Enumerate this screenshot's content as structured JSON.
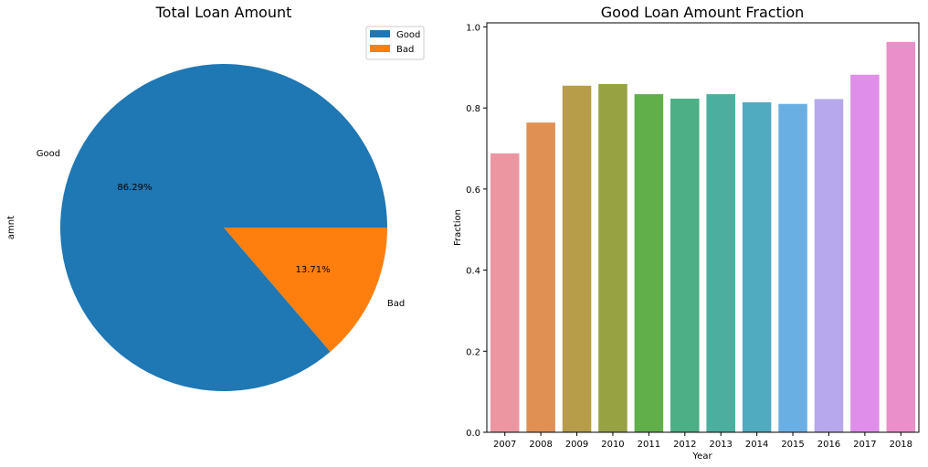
{
  "chart_data": [
    {
      "type": "pie",
      "title": "Total Loan Amount",
      "ylabel": "amnt",
      "labels": [
        "Good",
        "Bad"
      ],
      "values": [
        86.29,
        13.71
      ],
      "pct_labels": [
        "86.29%",
        "13.71%"
      ],
      "colors": [
        "#1f77b4",
        "#ff7f0e"
      ],
      "legend": {
        "position": "top-right",
        "entries": [
          "Good",
          "Bad"
        ]
      }
    },
    {
      "type": "bar",
      "title": "Good Loan Amount Fraction",
      "xlabel": "Year",
      "ylabel": "Fraction",
      "categories": [
        "2007",
        "2008",
        "2009",
        "2010",
        "2011",
        "2012",
        "2013",
        "2014",
        "2015",
        "2016",
        "2017",
        "2018"
      ],
      "values": [
        0.688,
        0.764,
        0.855,
        0.859,
        0.834,
        0.823,
        0.834,
        0.814,
        0.81,
        0.822,
        0.882,
        0.963
      ],
      "colors": [
        "#ec96a2",
        "#e09053",
        "#b79d4a",
        "#97a243",
        "#60af4a",
        "#4caf86",
        "#4cae9f",
        "#50aac0",
        "#6aafe4",
        "#b6a8ea",
        "#df8ee9",
        "#ea8fc8"
      ],
      "ylim": [
        0,
        1.01
      ],
      "yticks": [
        0.0,
        0.2,
        0.4,
        0.6,
        0.8,
        1.0
      ],
      "ytick_labels": [
        "0.0",
        "0.2",
        "0.4",
        "0.6",
        "0.8",
        "1.0"
      ],
      "grid": false
    }
  ]
}
